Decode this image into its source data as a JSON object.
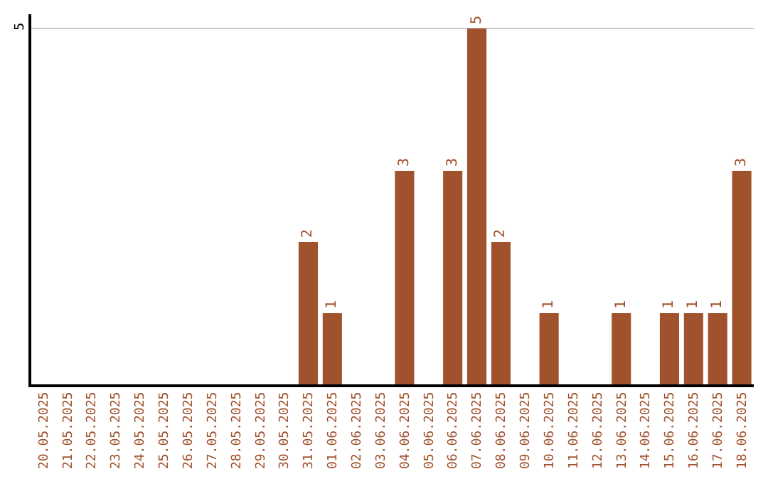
{
  "chart_data": {
    "type": "bar",
    "categories": [
      "20.05.2025",
      "21.05.2025",
      "22.05.2025",
      "23.05.2025",
      "24.05.2025",
      "25.05.2025",
      "26.05.2025",
      "27.05.2025",
      "28.05.2025",
      "29.05.2025",
      "30.05.2025",
      "31.05.2025",
      "01.06.2025",
      "02.06.2025",
      "03.06.2025",
      "04.06.2025",
      "05.06.2025",
      "06.06.2025",
      "07.06.2025",
      "08.06.2025",
      "09.06.2025",
      "10.06.2025",
      "11.06.2025",
      "12.06.2025",
      "13.06.2025",
      "14.06.2025",
      "15.06.2025",
      "16.06.2025",
      "17.06.2025",
      "18.06.2025"
    ],
    "values": [
      0,
      0,
      0,
      0,
      0,
      0,
      0,
      0,
      0,
      0,
      0,
      2,
      1,
      0,
      0,
      3,
      0,
      3,
      5,
      2,
      0,
      1,
      0,
      0,
      1,
      0,
      1,
      1,
      1,
      3
    ],
    "value_labels": [
      null,
      null,
      null,
      null,
      null,
      null,
      null,
      null,
      null,
      null,
      null,
      "2",
      "1",
      null,
      null,
      "3",
      null,
      "3",
      "5",
      "2",
      null,
      "1",
      null,
      null,
      "1",
      null,
      "1",
      "1",
      "1",
      "3"
    ],
    "color": "#a0522d",
    "ylim": [
      0,
      5.2
    ],
    "yticks": [
      5
    ],
    "grid": "y"
  }
}
